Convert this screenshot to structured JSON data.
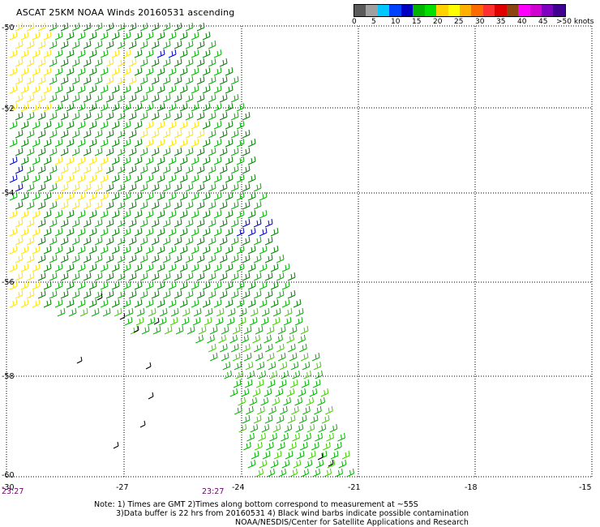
{
  "title": "ASCAT 25KM NOAA Winds 20160531 ascending",
  "colorbar": {
    "swatches": [
      "#5a5a5a",
      "#a0a0a0",
      "#00c8ff",
      "#0040ff",
      "#0000c0",
      "#00b400",
      "#00e000",
      "#ffd200",
      "#ffff00",
      "#ffb000",
      "#ff6a00",
      "#ff3030",
      "#e00000",
      "#8b4513",
      "#ff00ff",
      "#d000d0",
      "#8000c0",
      "#400090"
    ],
    "labels": [
      "0",
      "5",
      "10",
      "15",
      "20",
      "25",
      "30",
      "35",
      "40",
      "45",
      ">50 knots"
    ]
  },
  "map": {
    "lon_ticks": [
      "-30",
      "-27",
      "-24",
      "-21",
      "-18",
      "-15"
    ],
    "lat_ticks": [
      "-50",
      "-52",
      "-54",
      "-56",
      "-58",
      "-60"
    ],
    "time_labels": [
      "23:27",
      "23:27"
    ]
  },
  "notes": [
    "Note: 1) Times are GMT 2)Times along bottom correspond to measurement at ~55S",
    "3)Data buffer is 22 hrs from 20160531 4) Black wind barbs indicate possible contamination",
    "NOAA/NESDIS/Center for Satellite Applications and Research"
  ],
  "colors": {
    "green_dark": "#008000",
    "green": "#00b400",
    "green_light": "#40d000",
    "yellow": "#ffe600",
    "blue": "#0000c8",
    "black": "#000000",
    "time": "#6a006a"
  }
}
